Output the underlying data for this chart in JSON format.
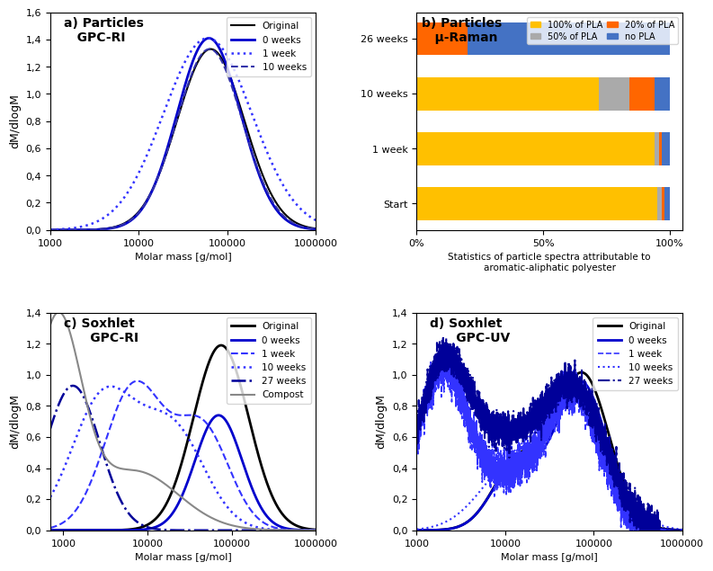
{
  "panel_a": {
    "title": "a) Particles\n   GPC-RI",
    "xlabel": "Molar mass [g/mol]",
    "ylabel": "dM/dlogM",
    "ylim": [
      0,
      1.6
    ],
    "yticks": [
      0.0,
      0.2,
      0.4,
      0.6,
      0.8,
      1.0,
      1.2,
      1.4,
      1.6
    ],
    "ytick_labels": [
      "0,0",
      "0,2",
      "0,4",
      "0,6",
      "0,8",
      "1,0",
      "1,2",
      "1,4",
      "1,6"
    ],
    "xlim": [
      1000,
      1000000
    ],
    "curves": [
      {
        "label": "Original",
        "color": "#000000",
        "ls": "solid",
        "lw": 1.5,
        "peak": 65000,
        "sigma": 0.38,
        "amp": 1.33
      },
      {
        "label": "0 weeks",
        "color": "#0000CC",
        "ls": "solid",
        "lw": 2.0,
        "peak": 62000,
        "sigma": 0.36,
        "amp": 1.41
      },
      {
        "label": "1 week",
        "color": "#3333FF",
        "ls": "dotted",
        "lw": 1.8,
        "peak": 60000,
        "sigma": 0.5,
        "amp": 1.41
      },
      {
        "label": "10 weeks",
        "color": "#3333AA",
        "ls": "dashed",
        "lw": 1.5,
        "peak": 63000,
        "sigma": 0.37,
        "amp": 1.33
      }
    ]
  },
  "panel_b": {
    "title": "b) Particles\n   μ-Raman",
    "xlabel": "Statistics of particle spectra attributable to\naromatic-aliphatic polyester",
    "categories": [
      "Start",
      "1 week",
      "10 weeks",
      "26 weeks"
    ],
    "data": {
      "100% of PLA": [
        0.95,
        0.94,
        0.72,
        0.0
      ],
      "50% of PLA": [
        0.02,
        0.02,
        0.12,
        0.0
      ],
      "20% of PLA": [
        0.01,
        0.01,
        0.1,
        0.2
      ],
      "no PLA": [
        0.02,
        0.03,
        0.06,
        0.8
      ]
    },
    "colors": {
      "100% of PLA": "#FFC000",
      "50% of PLA": "#AAAAAA",
      "20% of PLA": "#FF6600",
      "no PLA": "#4472C4"
    },
    "stack_order": [
      "100% of PLA",
      "50% of PLA",
      "20% of PLA",
      "no PLA"
    ],
    "legend_order": [
      "100% of PLA",
      "50% of PLA",
      "20% of PLA",
      "no PLA"
    ]
  },
  "panel_c": {
    "title": "c) Soxhlet\n      GPC-RI",
    "xlabel": "Molar mass [g/mol]",
    "ylabel": "dM/dlogM",
    "ylim": [
      0,
      1.4
    ],
    "yticks": [
      0.0,
      0.2,
      0.4,
      0.6,
      0.8,
      1.0,
      1.2,
      1.4
    ],
    "ytick_labels": [
      "0,0",
      "0,2",
      "0,4",
      "0,6",
      "0,8",
      "1,0",
      "1,2",
      "1,4"
    ],
    "xlim": [
      700,
      1000000
    ],
    "curves": [
      {
        "label": "Original",
        "color": "#000000",
        "ls": "solid",
        "lw": 2.0,
        "peaks": [
          {
            "peak": 75000,
            "sigma": 0.33,
            "amp": 1.19
          }
        ]
      },
      {
        "label": "0 weeks",
        "color": "#0000CC",
        "ls": "solid",
        "lw": 2.0,
        "peaks": [
          {
            "peak": 70000,
            "sigma": 0.28,
            "amp": 0.74
          }
        ]
      },
      {
        "label": "1 week",
        "color": "#3333FF",
        "ls": "dashed",
        "lw": 1.5,
        "peaks": [
          {
            "peak": 7000,
            "sigma": 0.35,
            "amp": 0.93
          },
          {
            "peak": 45000,
            "sigma": 0.32,
            "amp": 0.65
          }
        ]
      },
      {
        "label": "10 weeks",
        "color": "#3333FF",
        "ls": "dotted",
        "lw": 1.8,
        "peaks": [
          {
            "peak": 3000,
            "sigma": 0.38,
            "amp": 0.85
          },
          {
            "peak": 20000,
            "sigma": 0.38,
            "amp": 0.64
          }
        ]
      },
      {
        "label": "27 weeks",
        "color": "#000099",
        "ls": "dashdot",
        "lw": 1.8,
        "peaks": [
          {
            "peak": 1300,
            "sigma": 0.32,
            "amp": 0.93
          }
        ]
      },
      {
        "label": "Compost",
        "color": "#888888",
        "ls": "solid",
        "lw": 1.5,
        "peaks": [
          {
            "peak": 850,
            "sigma": 0.28,
            "amp": 1.32
          },
          {
            "peak": 7000,
            "sigma": 0.52,
            "amp": 0.38
          }
        ]
      }
    ]
  },
  "panel_d": {
    "title": "d) Soxhlet\n      GPC-UV",
    "xlabel": "Molar mass [g/mol]",
    "ylabel": "dM/dlogM",
    "ylim": [
      0,
      1.4
    ],
    "yticks": [
      0.0,
      0.2,
      0.4,
      0.6,
      0.8,
      1.0,
      1.2,
      1.4
    ],
    "ytick_labels": [
      "0,0",
      "0,2",
      "0,4",
      "0,6",
      "0,8",
      "1,0",
      "1,2",
      "1,4"
    ],
    "xlim": [
      1000,
      1000000
    ],
    "curves": [
      {
        "label": "Original",
        "color": "#000000",
        "ls": "solid",
        "lw": 2.0,
        "peaks": [
          {
            "peak": 75000,
            "sigma": 0.3,
            "amp": 1.0
          },
          {
            "peak": 14000,
            "sigma": 0.28,
            "amp": 0.44
          }
        ],
        "noise": false
      },
      {
        "label": "0 weeks",
        "color": "#0000CC",
        "ls": "solid",
        "lw": 2.0,
        "peaks": [
          {
            "peak": 72000,
            "sigma": 0.29,
            "amp": 0.95
          },
          {
            "peak": 13000,
            "sigma": 0.27,
            "amp": 0.4
          }
        ],
        "noise": false
      },
      {
        "label": "1 week",
        "color": "#3333FF",
        "ls": "dashed",
        "lw": 1.2,
        "peaks": [
          {
            "peak": 60000,
            "sigma": 0.3,
            "amp": 0.88
          },
          {
            "peak": 2000,
            "sigma": 0.28,
            "amp": 1.05
          },
          {
            "peak": 12000,
            "sigma": 0.3,
            "amp": 0.32
          }
        ],
        "noise": true,
        "noise_amp": 0.06
      },
      {
        "label": "10 weeks",
        "color": "#3333FF",
        "ls": "dotted",
        "lw": 1.5,
        "peaks": [
          {
            "peak": 65000,
            "sigma": 0.38,
            "amp": 0.75
          },
          {
            "peak": 12000,
            "sigma": 0.38,
            "amp": 0.38
          }
        ],
        "noise": false
      },
      {
        "label": "27 weeks",
        "color": "#000099",
        "ls": "dashdot",
        "lw": 1.5,
        "peaks": [
          {
            "peak": 60000,
            "sigma": 0.35,
            "amp": 0.9
          },
          {
            "peak": 2000,
            "sigma": 0.3,
            "amp": 1.05
          },
          {
            "peak": 10000,
            "sigma": 0.35,
            "amp": 0.5
          }
        ],
        "noise": true,
        "noise_amp": 0.05
      }
    ]
  }
}
